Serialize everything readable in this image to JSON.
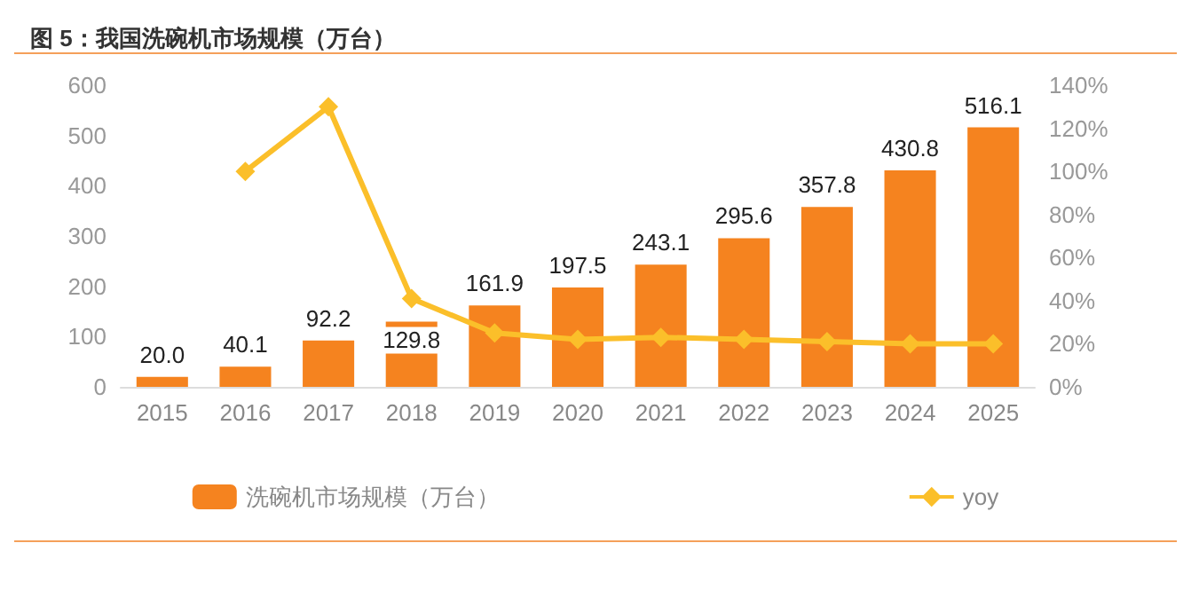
{
  "chart_data": {
    "type": "bar",
    "title": "图 5：我国洗碗机市场规模（万台）",
    "categories": [
      "2015",
      "2016",
      "2017",
      "2018",
      "2019",
      "2020",
      "2021",
      "2022",
      "2023",
      "2024",
      "2025"
    ],
    "series": [
      {
        "name": "洗碗机市场规模（万台）",
        "color": "#f5831f",
        "values": [
          20.0,
          40.1,
          92.2,
          129.8,
          161.9,
          197.5,
          243.1,
          295.6,
          357.8,
          430.8,
          516.1
        ],
        "value_labels": [
          "20.0",
          "40.1",
          "92.2",
          "129.8",
          "161.9",
          "197.5",
          "243.1",
          "295.6",
          "357.8",
          "430.8",
          "516.1"
        ]
      },
      {
        "name": "yoy",
        "type": "line",
        "axis": "y2",
        "color": "#fbbf2a",
        "marker": "diamond",
        "values": [
          null,
          100,
          130,
          41,
          25,
          22,
          23,
          22,
          21,
          20,
          20
        ]
      }
    ],
    "ylim": [
      0,
      600
    ],
    "yticks": [
      0,
      100,
      200,
      300,
      400,
      500,
      600
    ],
    "y2lim": [
      0,
      140
    ],
    "y2ticks": [
      {
        "value": 0,
        "label": "0%"
      },
      {
        "value": 20,
        "label": "20%"
      },
      {
        "value": 40,
        "label": "40%"
      },
      {
        "value": 60,
        "label": "60%"
      },
      {
        "value": 80,
        "label": "80%"
      },
      {
        "value": 100,
        "label": "100%"
      },
      {
        "value": 120,
        "label": "120%"
      },
      {
        "value": 140,
        "label": "140%"
      }
    ],
    "grid": false,
    "legend": "bottom"
  }
}
